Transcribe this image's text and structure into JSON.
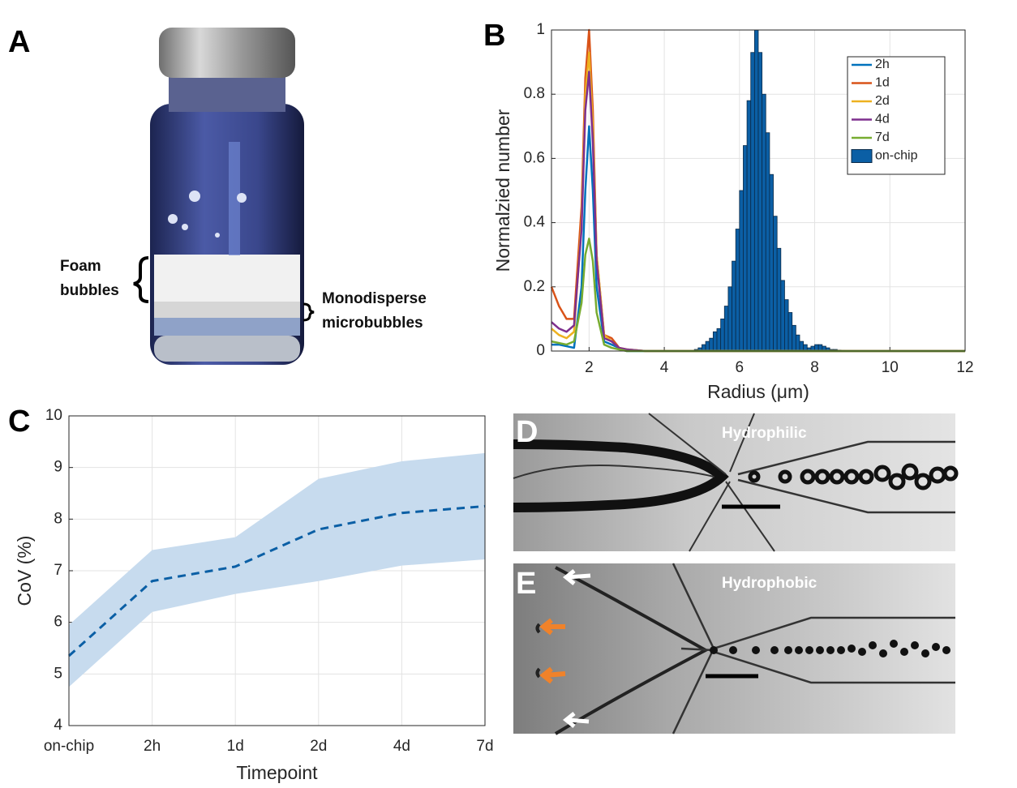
{
  "panel_a": {
    "label": "A",
    "foam_label": [
      "Foam",
      "bubbles"
    ],
    "micro_label": [
      "Monodisperse",
      "microbubbles"
    ]
  },
  "panel_d": {
    "label": "D",
    "caption": "Hydrophilic"
  },
  "panel_e": {
    "label": "E",
    "caption": "Hydrophobic"
  },
  "chart_data": [
    {
      "type": "line",
      "label": "B",
      "x_label": "Radius (μm)",
      "y_label": "Normalzied number",
      "xlim": [
        1,
        12
      ],
      "ylim": [
        0,
        1
      ],
      "xticks": [
        2,
        4,
        6,
        8,
        10,
        12
      ],
      "yticks": [
        0,
        0.2,
        0.4,
        0.6,
        0.8,
        1
      ],
      "grid": true,
      "legend": "upper right",
      "x": [
        1,
        1.2,
        1.4,
        1.6,
        1.8,
        1.9,
        2.0,
        2.1,
        2.2,
        2.4,
        2.6,
        2.8,
        3,
        3.5,
        4,
        6,
        8,
        10,
        12
      ],
      "histogram": {
        "name": "on-chip",
        "color": "#0b5fa5",
        "bins": [
          4.8,
          4.9,
          5.0,
          5.1,
          5.2,
          5.3,
          5.4,
          5.5,
          5.6,
          5.7,
          5.8,
          5.9,
          6.0,
          6.1,
          6.2,
          6.3,
          6.4,
          6.5,
          6.6,
          6.7,
          6.8,
          6.9,
          7.0,
          7.1,
          7.2,
          7.3,
          7.4,
          7.5,
          7.6,
          7.7,
          7.8,
          7.9,
          8.0,
          8.1,
          8.2,
          8.3,
          8.4,
          8.5,
          8.6,
          8.7,
          8.8
        ],
        "counts": [
          0.005,
          0.01,
          0.02,
          0.03,
          0.04,
          0.06,
          0.07,
          0.1,
          0.14,
          0.2,
          0.28,
          0.38,
          0.5,
          0.64,
          0.78,
          0.93,
          1.0,
          0.93,
          0.8,
          0.68,
          0.55,
          0.42,
          0.32,
          0.22,
          0.16,
          0.12,
          0.08,
          0.05,
          0.03,
          0.02,
          0.01,
          0.015,
          0.02,
          0.02,
          0.015,
          0.01,
          0.005,
          0.005,
          0.003,
          0.002
        ]
      },
      "series": [
        {
          "name": "2h",
          "color": "#0072bd",
          "values": [
            0.02,
            0.02,
            0.015,
            0.01,
            0.2,
            0.5,
            0.7,
            0.5,
            0.2,
            0.03,
            0.02,
            0.01,
            0,
            0,
            0,
            0,
            0,
            0,
            0
          ]
        },
        {
          "name": "1d",
          "color": "#d95319",
          "values": [
            0.2,
            0.14,
            0.1,
            0.1,
            0.45,
            0.85,
            1.0,
            0.75,
            0.3,
            0.05,
            0.04,
            0.01,
            0.005,
            0,
            0,
            0,
            0,
            0,
            0
          ]
        },
        {
          "name": "2d",
          "color": "#edb120",
          "values": [
            0.07,
            0.05,
            0.04,
            0.06,
            0.4,
            0.8,
            0.93,
            0.7,
            0.3,
            0.05,
            0.03,
            0.01,
            0.005,
            0,
            0,
            0,
            0,
            0,
            0
          ]
        },
        {
          "name": "4d",
          "color": "#7e2f8e",
          "values": [
            0.09,
            0.07,
            0.06,
            0.08,
            0.38,
            0.75,
            0.87,
            0.65,
            0.28,
            0.04,
            0.03,
            0.01,
            0.005,
            0,
            0,
            0,
            0,
            0,
            0
          ]
        },
        {
          "name": "7d",
          "color": "#77ac30",
          "values": [
            0.03,
            0.025,
            0.02,
            0.03,
            0.15,
            0.3,
            0.35,
            0.28,
            0.12,
            0.02,
            0.01,
            0.005,
            0,
            0,
            0,
            0,
            0,
            0,
            0
          ]
        }
      ]
    },
    {
      "type": "line",
      "label": "C",
      "x_label": "Timepoint",
      "y_label": "CoV (%)",
      "categories": [
        "on-chip",
        "2h",
        "1d",
        "2d",
        "4d",
        "7d"
      ],
      "ylim": [
        4,
        10
      ],
      "yticks": [
        4,
        5,
        6,
        7,
        8,
        9,
        10
      ],
      "grid": true,
      "series": [
        {
          "color": "#0b5fa5",
          "band_color": "#c7dbee",
          "values": [
            5.35,
            6.8,
            7.08,
            7.8,
            8.12,
            8.25
          ],
          "lower": [
            4.75,
            6.2,
            6.55,
            6.8,
            7.1,
            7.22
          ],
          "upper": [
            5.95,
            7.4,
            7.65,
            8.78,
            9.12,
            9.28
          ]
        }
      ]
    }
  ]
}
